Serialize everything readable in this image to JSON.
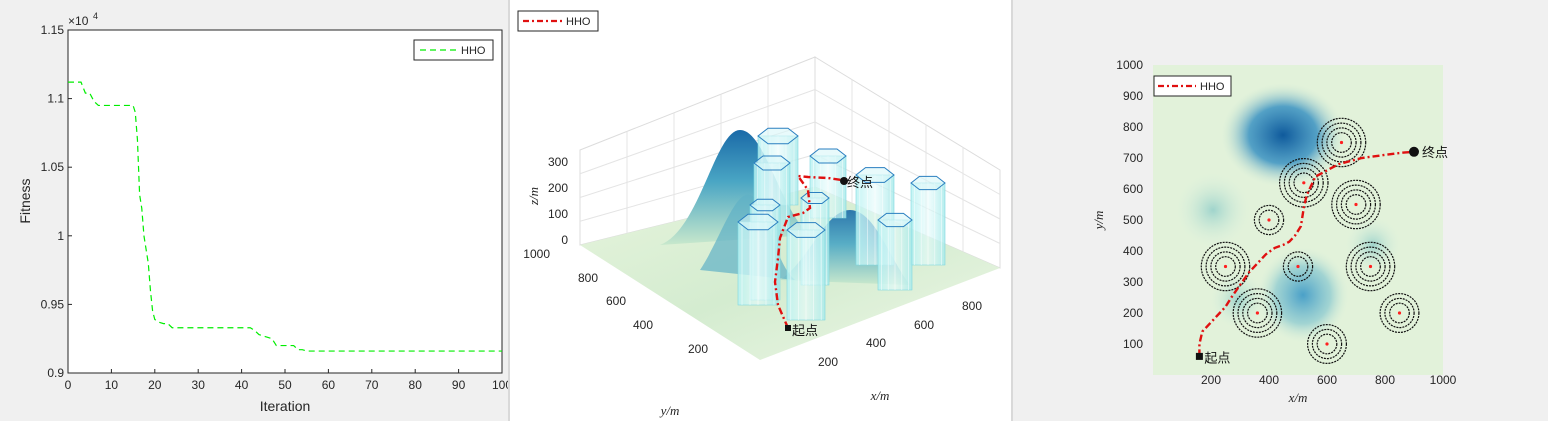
{
  "chart_data": [
    {
      "type": "line",
      "xlabel": "Iteration",
      "ylabel": "Fitness",
      "exponent_label": "10",
      "exponent_power": "4",
      "xlim": [
        0,
        100
      ],
      "ylim": [
        0.9,
        1.15
      ],
      "xticks": [
        "0",
        "10",
        "20",
        "30",
        "40",
        "50",
        "60",
        "70",
        "80",
        "90",
        "100"
      ],
      "yticks": [
        "0.9",
        "0.95",
        "1",
        "1.05",
        "1.1",
        "1.15"
      ],
      "legend": [
        "HHO"
      ],
      "series": [
        {
          "name": "HHO",
          "color": "#00ee00",
          "x": [
            0,
            1,
            2,
            3,
            4,
            5,
            6,
            7,
            8,
            9,
            10,
            11,
            12,
            13,
            14,
            15,
            15.5,
            16,
            16.5,
            17,
            17.5,
            18,
            18.5,
            19,
            19.5,
            20,
            21,
            22,
            23,
            24,
            25,
            30,
            35,
            40,
            42,
            43,
            44,
            45,
            46,
            47,
            48,
            49,
            50,
            52,
            53,
            54,
            55,
            60,
            70,
            80,
            90,
            100
          ],
          "y": [
            1.112,
            1.112,
            1.112,
            1.112,
            1.104,
            1.104,
            1.098,
            1.095,
            1.095,
            1.095,
            1.095,
            1.095,
            1.095,
            1.095,
            1.095,
            1.095,
            1.09,
            1.07,
            1.03,
            1.02,
            1.0,
            0.99,
            0.98,
            0.96,
            0.945,
            0.939,
            0.937,
            0.936,
            0.936,
            0.933,
            0.933,
            0.933,
            0.933,
            0.933,
            0.933,
            0.931,
            0.928,
            0.927,
            0.926,
            0.925,
            0.92,
            0.92,
            0.92,
            0.92,
            0.917,
            0.917,
            0.916,
            0.916,
            0.916,
            0.916,
            0.916,
            0.916
          ]
        }
      ]
    },
    {
      "type": "surface3d",
      "xlabel": "x/m",
      "ylabel": "y/m",
      "zlabel": "z/m",
      "xticks": [
        "200",
        "400",
        "600",
        "800"
      ],
      "yticks": [
        "200",
        "400",
        "600",
        "800",
        "1000"
      ],
      "zticks": [
        "0",
        "100",
        "200",
        "300"
      ],
      "legend": [
        "HHO"
      ],
      "start_label": "起点",
      "end_label": "终点"
    },
    {
      "type": "heatmap",
      "xlabel": "x/m",
      "ylabel": "y/m",
      "xlim": [
        0,
        1000
      ],
      "ylim": [
        0,
        1000
      ],
      "xticks": [
        "200",
        "400",
        "600",
        "800",
        "1000"
      ],
      "yticks": [
        "100",
        "200",
        "300",
        "400",
        "500",
        "600",
        "700",
        "800",
        "900",
        "1000"
      ],
      "legend": [
        "HHO"
      ],
      "start_label": "起点",
      "end_label": "终点",
      "start": [
        160,
        60
      ],
      "end": [
        900,
        720
      ],
      "threats": [
        {
          "x": 650,
          "y": 750,
          "rings": 4
        },
        {
          "x": 520,
          "y": 620,
          "rings": 4
        },
        {
          "x": 700,
          "y": 550,
          "rings": 4
        },
        {
          "x": 400,
          "y": 500,
          "rings": 2
        },
        {
          "x": 250,
          "y": 350,
          "rings": 4
        },
        {
          "x": 500,
          "y": 350,
          "rings": 2
        },
        {
          "x": 750,
          "y": 350,
          "rings": 4
        },
        {
          "x": 360,
          "y": 200,
          "rings": 4
        },
        {
          "x": 850,
          "y": 200,
          "rings": 3
        },
        {
          "x": 600,
          "y": 100,
          "rings": 3
        }
      ],
      "path": {
        "x": [
          160,
          160,
          170,
          200,
          230,
          250,
          270,
          300,
          330,
          360,
          390,
          420,
          450,
          470,
          490,
          510,
          520,
          530,
          540,
          560,
          600,
          640,
          680,
          720,
          760,
          800,
          840,
          870,
          900
        ],
        "y": [
          60,
          100,
          140,
          170,
          200,
          220,
          250,
          290,
          330,
          360,
          390,
          410,
          420,
          430,
          450,
          480,
          540,
          580,
          600,
          640,
          660,
          680,
          690,
          700,
          705,
          710,
          715,
          718,
          720
        ]
      }
    }
  ]
}
